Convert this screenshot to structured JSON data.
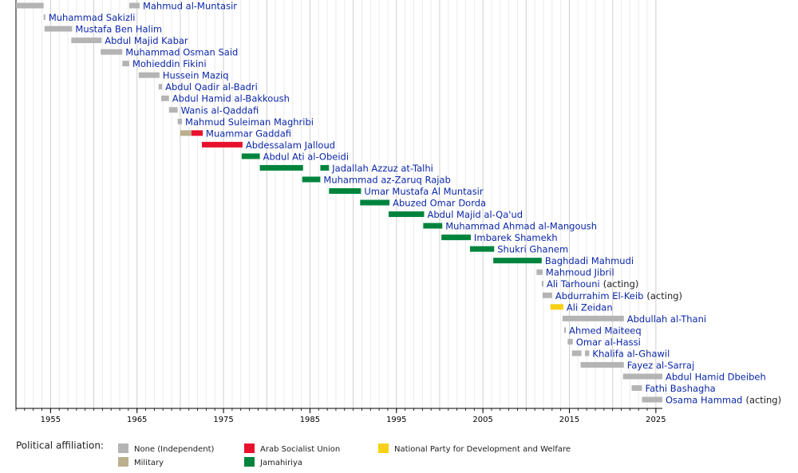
{
  "chart_data": {
    "type": "timeline",
    "xlim": [
      1951,
      2025.75
    ],
    "xticks": [
      1955,
      1965,
      1975,
      1985,
      1995,
      2005,
      2015,
      2025
    ],
    "grid": true,
    "rows": [
      {
        "name": "Mahmud al-Muntasir",
        "segments": [
          {
            "start": 1951,
            "end": 1954.2,
            "color": "#b4b4b4"
          },
          {
            "start": 1964.1,
            "end": 1965.3,
            "color": "#b4b4b4"
          }
        ]
      },
      {
        "name": "Muhammad Sakizli",
        "segments": [
          {
            "start": 1954.2,
            "end": 1954.4,
            "color": "#b4b4b4"
          }
        ]
      },
      {
        "name": "Mustafa Ben Halim",
        "segments": [
          {
            "start": 1954.3,
            "end": 1957.5,
            "color": "#b4b4b4"
          }
        ]
      },
      {
        "name": "Abdul Majid Kabar",
        "segments": [
          {
            "start": 1957.4,
            "end": 1960.9,
            "color": "#b4b4b4"
          }
        ]
      },
      {
        "name": "Muhammad Osman Said",
        "segments": [
          {
            "start": 1960.8,
            "end": 1963.3,
            "color": "#b4b4b4"
          }
        ]
      },
      {
        "name": "Mohieddin Fikini",
        "segments": [
          {
            "start": 1963.3,
            "end": 1964.1,
            "color": "#b4b4b4"
          }
        ]
      },
      {
        "name": "Hussein Maziq",
        "segments": [
          {
            "start": 1965.2,
            "end": 1967.6,
            "color": "#b4b4b4"
          }
        ]
      },
      {
        "name": "Abdul Qadir al-Badri",
        "segments": [
          {
            "start": 1967.5,
            "end": 1967.9,
            "color": "#b4b4b4"
          }
        ]
      },
      {
        "name": "Abdul Hamid al-Bakkoush",
        "segments": [
          {
            "start": 1967.8,
            "end": 1968.7,
            "color": "#b4b4b4"
          }
        ]
      },
      {
        "name": "Wanis al-Qaddafi",
        "segments": [
          {
            "start": 1968.7,
            "end": 1969.7,
            "color": "#b4b4b4"
          }
        ]
      },
      {
        "name": "Mahmud Suleiman Maghribi",
        "segments": [
          {
            "start": 1969.7,
            "end": 1970.2,
            "color": "#b4b4b4"
          }
        ]
      },
      {
        "name": "Muammar Gaddafi",
        "segments": [
          {
            "start": 1970.0,
            "end": 1971.3,
            "color": "#bcaf8d"
          },
          {
            "start": 1971.3,
            "end": 1972.6,
            "color": "#e8112d"
          }
        ]
      },
      {
        "name": "Abdessalam Jalloud",
        "segments": [
          {
            "start": 1972.5,
            "end": 1977.2,
            "color": "#e8112d"
          }
        ]
      },
      {
        "name": "Abdul Ati al-Obeidi",
        "segments": [
          {
            "start": 1977.1,
            "end": 1979.2,
            "color": "#00843d"
          }
        ]
      },
      {
        "name": "Jadallah Azzuz at-Talhi",
        "segments": [
          {
            "start": 1979.2,
            "end": 1984.2,
            "color": "#00843d"
          },
          {
            "start": 1986.2,
            "end": 1987.2,
            "color": "#00843d"
          }
        ]
      },
      {
        "name": "Muhammad az-Zaruq Rajab",
        "segments": [
          {
            "start": 1984.1,
            "end": 1986.2,
            "color": "#00843d"
          }
        ]
      },
      {
        "name": "Umar Mustafa Al Muntasir",
        "segments": [
          {
            "start": 1987.2,
            "end": 1990.9,
            "color": "#00843d"
          }
        ]
      },
      {
        "name": "Abuzed Omar Dorda",
        "segments": [
          {
            "start": 1990.8,
            "end": 1994.2,
            "color": "#00843d"
          }
        ]
      },
      {
        "name": "Abdul Majid al-Qa'ud",
        "segments": [
          {
            "start": 1994.1,
            "end": 1998.2,
            "color": "#00843d"
          }
        ]
      },
      {
        "name": "Muhammad Ahmad al-Mangoush",
        "segments": [
          {
            "start": 1998.1,
            "end": 2000.3,
            "color": "#00843d"
          }
        ]
      },
      {
        "name": "Imbarek Shamekh",
        "segments": [
          {
            "start": 2000.2,
            "end": 2003.6,
            "color": "#00843d"
          }
        ]
      },
      {
        "name": "Shukri Ghanem",
        "segments": [
          {
            "start": 2003.5,
            "end": 2006.3,
            "color": "#00843d"
          }
        ]
      },
      {
        "name": "Baghdadi Mahmudi",
        "segments": [
          {
            "start": 2006.2,
            "end": 2011.8,
            "color": "#00843d"
          }
        ]
      },
      {
        "name": "Mahmoud Jibril",
        "segments": [
          {
            "start": 2011.2,
            "end": 2011.9,
            "color": "#b4b4b4"
          }
        ]
      },
      {
        "name": "Ali Tarhouni",
        "suffix": "(acting)",
        "segments": [
          {
            "start": 2011.8,
            "end": 2012.0,
            "color": "#b4b4b4"
          }
        ]
      },
      {
        "name": "Abdurrahim El-Keib",
        "suffix": "(acting)",
        "segments": [
          {
            "start": 2011.9,
            "end": 2013.0,
            "color": "#b4b4b4"
          }
        ]
      },
      {
        "name": "Ali Zeidan",
        "segments": [
          {
            "start": 2012.8,
            "end": 2014.3,
            "color": "#f7d117"
          }
        ]
      },
      {
        "name": "Abdullah al-Thani",
        "segments": [
          {
            "start": 2014.2,
            "end": 2021.3,
            "color": "#b4b4b4"
          }
        ]
      },
      {
        "name": "Ahmed Maiteeq",
        "segments": [
          {
            "start": 2014.4,
            "end": 2014.6,
            "color": "#b4b4b4"
          }
        ]
      },
      {
        "name": "Omar al-Hassi",
        "segments": [
          {
            "start": 2014.8,
            "end": 2015.4,
            "color": "#b4b4b4"
          }
        ]
      },
      {
        "name": "Khalifa al-Ghawil",
        "segments": [
          {
            "start": 2015.3,
            "end": 2016.4,
            "color": "#b4b4b4"
          },
          {
            "start": 2016.8,
            "end": 2017.3,
            "color": "#b4b4b4"
          }
        ]
      },
      {
        "name": "Fayez al-Sarraj",
        "segments": [
          {
            "start": 2016.3,
            "end": 2021.3,
            "color": "#b4b4b4"
          }
        ]
      },
      {
        "name": "Abdul Hamid Dbeibeh",
        "segments": [
          {
            "start": 2021.2,
            "end": 2025.75,
            "color": "#b4b4b4"
          }
        ]
      },
      {
        "name": "Fathi Bashagha",
        "segments": [
          {
            "start": 2022.2,
            "end": 2023.4,
            "color": "#b4b4b4"
          }
        ]
      },
      {
        "name": "Osama Hammad",
        "suffix": "(acting)",
        "segments": [
          {
            "start": 2023.4,
            "end": 2025.75,
            "color": "#b4b4b4"
          }
        ]
      }
    ],
    "legend": {
      "title": "Political affiliation:",
      "items": [
        {
          "name": "None (Independent)",
          "color": "#b4b4b4"
        },
        {
          "name": "Military",
          "color": "#bcaf8d"
        },
        {
          "name": "Arab Socialist Union",
          "color": "#e8112d"
        },
        {
          "name": "Jamahiriya",
          "color": "#00843d"
        },
        {
          "name": "National Party for Development and Welfare",
          "color": "#f7d117"
        }
      ]
    }
  }
}
